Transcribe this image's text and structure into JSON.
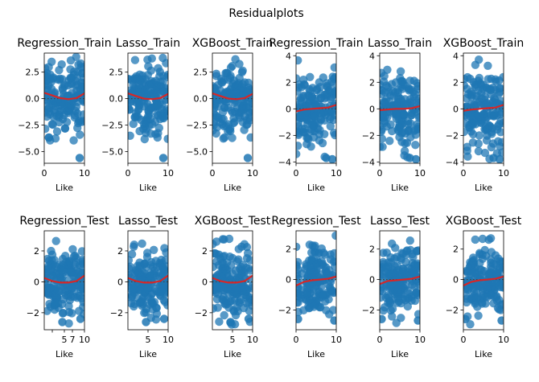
{
  "figure": {
    "suptitle": "Residualplots"
  },
  "chart_data": [
    {
      "type": "scatter",
      "title": "Regression_Train",
      "xlabel": "Like",
      "ylabel": "",
      "xlim": [
        0,
        10
      ],
      "ylim": [
        -6.1,
        4.3
      ],
      "xticks": [
        0,
        10
      ],
      "xtick_labels": [
        "0",
        "10"
      ],
      "yticks": [
        -5.0,
        -2.5,
        0.0,
        2.5
      ],
      "ytick_labels": [
        "−5.0",
        "−2.5",
        "0.0",
        "2.5"
      ],
      "point_color": "#1f77b4",
      "line_color": "#d62728",
      "lowess_x": [
        0,
        2,
        4,
        6,
        8,
        10
      ],
      "lowess_y": [
        0.55,
        0.3,
        0.05,
        -0.05,
        0.05,
        0.5
      ],
      "outliers": [
        [
          8.8,
          -5.6
        ]
      ]
    },
    {
      "type": "scatter",
      "title": "Lasso_Train",
      "xlabel": "Like",
      "ylabel": "",
      "xlim": [
        0,
        10
      ],
      "ylim": [
        -6.1,
        4.3
      ],
      "xticks": [
        0,
        10
      ],
      "xtick_labels": [
        "0",
        "10"
      ],
      "yticks": [
        -5.0,
        -2.5,
        0.0,
        2.5
      ],
      "ytick_labels": [
        "−5.0",
        "−2.5",
        "0.0",
        "2.5"
      ],
      "point_color": "#1f77b4",
      "line_color": "#d62728",
      "lowess_x": [
        0,
        2,
        4,
        6,
        8,
        10
      ],
      "lowess_y": [
        0.5,
        0.25,
        0.0,
        -0.05,
        0.05,
        0.45
      ],
      "outliers": [
        [
          8.8,
          -5.6
        ]
      ]
    },
    {
      "type": "scatter",
      "title": "XGBoost_Train",
      "xlabel": "Like",
      "ylabel": "",
      "xlim": [
        0,
        10
      ],
      "ylim": [
        -6.1,
        4.3
      ],
      "xticks": [
        0,
        10
      ],
      "xtick_labels": [
        "0",
        "10"
      ],
      "yticks": [
        -5.0,
        -2.5,
        0.0,
        2.5
      ],
      "ytick_labels": [
        "−5.0",
        "−2.5",
        "0.0",
        "2.5"
      ],
      "point_color": "#1f77b4",
      "line_color": "#d62728",
      "lowess_x": [
        0,
        2,
        4,
        6,
        8,
        10
      ],
      "lowess_y": [
        0.5,
        0.25,
        0.0,
        -0.05,
        0.05,
        0.45
      ],
      "outliers": [
        [
          8.8,
          -5.6
        ]
      ]
    },
    {
      "type": "scatter",
      "title": "Regression_Train",
      "xlabel": "Like",
      "ylabel": "",
      "xlim": [
        0,
        10
      ],
      "ylim": [
        -4.1,
        4.2
      ],
      "xticks": [
        0,
        10
      ],
      "xtick_labels": [
        "0",
        "10"
      ],
      "yticks": [
        -4,
        -2,
        0,
        2,
        4
      ],
      "ytick_labels": [
        "−4",
        "−2",
        "0",
        "2",
        "4"
      ],
      "point_color": "#1f77b4",
      "line_color": "#d62728",
      "lowess_x": [
        0,
        2,
        4,
        6,
        8,
        10
      ],
      "lowess_y": [
        -0.2,
        -0.05,
        0.0,
        0.05,
        0.1,
        0.3
      ],
      "outliers": [
        [
          7.5,
          -3.7
        ],
        [
          9.0,
          -3.8
        ]
      ]
    },
    {
      "type": "scatter",
      "title": "Lasso_Train",
      "xlabel": "Like",
      "ylabel": "",
      "xlim": [
        0,
        10
      ],
      "ylim": [
        -4.1,
        4.2
      ],
      "xticks": [
        0,
        10
      ],
      "xtick_labels": [
        "0",
        "10"
      ],
      "yticks": [
        -4,
        -2,
        0,
        2,
        4
      ],
      "ytick_labels": [
        "−4",
        "−2",
        "0",
        "2",
        "4"
      ],
      "point_color": "#1f77b4",
      "line_color": "#d62728",
      "lowess_x": [
        0,
        2,
        4,
        6,
        8,
        10
      ],
      "lowess_y": [
        -0.1,
        -0.05,
        0.0,
        0.0,
        0.05,
        0.2
      ],
      "outliers": [
        [
          7.5,
          -3.7
        ],
        [
          9.0,
          -3.8
        ]
      ]
    },
    {
      "type": "scatter",
      "title": "XGBoost_Train",
      "xlabel": "Like",
      "ylabel": "",
      "xlim": [
        0,
        10
      ],
      "ylim": [
        -4.1,
        4.2
      ],
      "xticks": [
        0,
        10
      ],
      "xtick_labels": [
        "0",
        "10"
      ],
      "yticks": [
        -4,
        -2,
        0,
        2,
        4
      ],
      "ytick_labels": [
        "−4",
        "−2",
        "0",
        "2",
        "4"
      ],
      "point_color": "#1f77b4",
      "line_color": "#d62728",
      "lowess_x": [
        0,
        2,
        4,
        6,
        8,
        10
      ],
      "lowess_y": [
        -0.15,
        -0.05,
        0.0,
        0.05,
        0.1,
        0.3
      ],
      "outliers": [
        [
          7.5,
          -3.7
        ],
        [
          9.0,
          -3.8
        ]
      ]
    },
    {
      "type": "scatter",
      "title": "Regression_Test",
      "xlabel": "Like",
      "ylabel": "",
      "xlim": [
        0,
        10
      ],
      "ylim": [
        -3.1,
        3.3
      ],
      "xticks": [
        2,
        5,
        7,
        10
      ],
      "xtick_labels": [
        "",
        "5",
        "7",
        "10"
      ],
      "yticks": [
        -2,
        0,
        2
      ],
      "ytick_labels": [
        "−2",
        "0",
        "2"
      ],
      "point_color": "#1f77b4",
      "line_color": "#d62728",
      "lowess_x": [
        0,
        2,
        4,
        6,
        8,
        10
      ],
      "lowess_y": [
        0.25,
        0.05,
        -0.05,
        -0.05,
        0.05,
        0.4
      ],
      "outliers": [
        [
          4.5,
          -2.6
        ],
        [
          9.0,
          -2.4
        ]
      ]
    },
    {
      "type": "scatter",
      "title": "Lasso_Test",
      "xlabel": "Like",
      "ylabel": "",
      "xlim": [
        0,
        10
      ],
      "ylim": [
        -3.1,
        3.3
      ],
      "xticks": [
        5,
        10
      ],
      "xtick_labels": [
        "5",
        "10"
      ],
      "yticks": [
        -2,
        0,
        2
      ],
      "ytick_labels": [
        "−2",
        "0",
        "2"
      ],
      "point_color": "#1f77b4",
      "line_color": "#d62728",
      "lowess_x": [
        0,
        2,
        4,
        6,
        8,
        10
      ],
      "lowess_y": [
        0.25,
        0.05,
        -0.05,
        -0.05,
        0.05,
        0.4
      ],
      "outliers": [
        [
          4.5,
          -2.6
        ],
        [
          9.0,
          -2.4
        ]
      ]
    },
    {
      "type": "scatter",
      "title": "XGBoost_Test",
      "xlabel": "Like",
      "ylabel": "",
      "xlim": [
        0,
        10
      ],
      "ylim": [
        -3.1,
        3.3
      ],
      "xticks": [
        5,
        10
      ],
      "xtick_labels": [
        "5",
        "10"
      ],
      "yticks": [
        -2,
        0,
        2
      ],
      "ytick_labels": [
        "−2",
        "0",
        "2"
      ],
      "point_color": "#1f77b4",
      "line_color": "#d62728",
      "lowess_x": [
        0,
        2,
        4,
        6,
        8,
        10
      ],
      "lowess_y": [
        0.25,
        0.05,
        -0.05,
        -0.05,
        0.05,
        0.4
      ],
      "outliers": [
        [
          4.5,
          -2.6
        ],
        [
          9.0,
          -2.4
        ]
      ]
    },
    {
      "type": "scatter",
      "title": "Regression_Test",
      "xlabel": "Like",
      "ylabel": "",
      "xlim": [
        0,
        10
      ],
      "ylim": [
        -3.3,
        3.2
      ],
      "xticks": [
        0,
        10
      ],
      "xtick_labels": [
        "0",
        "10"
      ],
      "yticks": [
        -2,
        0,
        2
      ],
      "ytick_labels": [
        "−2",
        "0",
        "2"
      ],
      "point_color": "#1f77b4",
      "line_color": "#d62728",
      "lowess_x": [
        0,
        2,
        4,
        6,
        8,
        10
      ],
      "lowess_y": [
        -0.4,
        -0.15,
        -0.05,
        0.0,
        0.05,
        0.2
      ],
      "outliers": [
        [
          0.5,
          -2.6
        ],
        [
          9.5,
          -2.7
        ]
      ]
    },
    {
      "type": "scatter",
      "title": "Lasso_Test",
      "xlabel": "Like",
      "ylabel": "",
      "xlim": [
        0,
        10
      ],
      "ylim": [
        -3.3,
        3.2
      ],
      "xticks": [
        0,
        10
      ],
      "xtick_labels": [
        "0",
        "10"
      ],
      "yticks": [
        -2,
        0,
        2
      ],
      "ytick_labels": [
        "−2",
        "0",
        "2"
      ],
      "point_color": "#1f77b4",
      "line_color": "#d62728",
      "lowess_x": [
        0,
        2,
        4,
        6,
        8,
        10
      ],
      "lowess_y": [
        -0.3,
        -0.1,
        -0.05,
        0.0,
        0.05,
        0.2
      ],
      "outliers": [
        [
          0.5,
          -2.6
        ],
        [
          9.5,
          -2.7
        ]
      ]
    },
    {
      "type": "scatter",
      "title": "XGBoost_Test",
      "xlabel": "Like",
      "ylabel": "",
      "xlim": [
        0,
        10
      ],
      "ylim": [
        -3.3,
        3.2
      ],
      "xticks": [
        0,
        10
      ],
      "xtick_labels": [
        "0",
        "10"
      ],
      "yticks": [
        -2,
        0,
        2
      ],
      "ytick_labels": [
        "−2",
        "0",
        "2"
      ],
      "point_color": "#1f77b4",
      "line_color": "#d62728",
      "lowess_x": [
        0,
        2,
        4,
        6,
        8,
        10
      ],
      "lowess_y": [
        -0.4,
        -0.15,
        -0.05,
        0.0,
        0.05,
        0.2
      ],
      "outliers": [
        [
          0.5,
          -2.6
        ],
        [
          9.5,
          -2.7
        ]
      ]
    }
  ]
}
